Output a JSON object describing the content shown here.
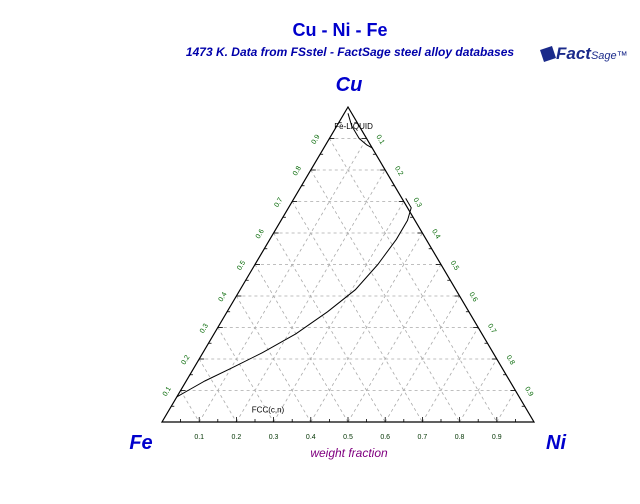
{
  "title": "Cu - Ni - Fe",
  "subtitle": "1473 K.  Data from FSstel - FactSage steel alloy databases",
  "logo": {
    "text": "Fact",
    "sub": "Sage",
    "tm": "™"
  },
  "colors": {
    "title": "#0000cc",
    "axis_label": "#800080",
    "tick_label": "#006600",
    "grid": "#aaaaaa",
    "frame": "#000000"
  },
  "chart_data": {
    "type": "ternary",
    "title": "Cu - Ni - Fe",
    "subtitle": "1473 K.  Data from FSstel - FactSage steel alloy databases",
    "components": {
      "top": "Cu",
      "left": "Fe",
      "right": "Ni"
    },
    "axis_label": "weight fraction",
    "ticks": [
      0.1,
      0.2,
      0.3,
      0.4,
      0.5,
      0.6,
      0.7,
      0.8,
      0.9
    ],
    "tick_labels": [
      "0.1",
      "0.2",
      "0.3",
      "0.4",
      "0.5",
      "0.6",
      "0.7",
      "0.8",
      "0.9"
    ],
    "bottom_tick_labels": [
      "0.9",
      "0.8",
      "0.7",
      "0.6",
      "0.5",
      "0.4",
      "0.3",
      "0.2",
      "0.1"
    ],
    "grid": true,
    "phase_labels": [
      {
        "text": "Fe-LIQUID",
        "cu": 0.93,
        "ni": 0.05
      },
      {
        "text": "FCC(c,n)",
        "cu": 0.03,
        "ni": 0.27
      }
    ],
    "curves": [
      {
        "points": [
          {
            "cu": 0.98,
            "ni": 0.01
          },
          {
            "cu": 0.94,
            "ni": 0.04
          },
          {
            "cu": 0.9,
            "ni": 0.08
          },
          {
            "cu": 0.88,
            "ni": 0.11
          },
          {
            "cu": 0.87,
            "ni": 0.13
          }
        ]
      },
      {
        "points": [
          {
            "cu": 0.08,
            "ni": 0.0
          },
          {
            "cu": 0.1,
            "ni": 0.02
          },
          {
            "cu": 0.13,
            "ni": 0.05
          },
          {
            "cu": 0.17,
            "ni": 0.1
          },
          {
            "cu": 0.22,
            "ni": 0.16
          },
          {
            "cu": 0.28,
            "ni": 0.22
          },
          {
            "cu": 0.35,
            "ni": 0.27
          },
          {
            "cu": 0.42,
            "ni": 0.31
          },
          {
            "cu": 0.5,
            "ni": 0.33
          },
          {
            "cu": 0.58,
            "ni": 0.34
          },
          {
            "cu": 0.64,
            "ni": 0.34
          },
          {
            "cu": 0.68,
            "ni": 0.33
          },
          {
            "cu": 0.71,
            "ni": 0.3
          }
        ]
      }
    ]
  }
}
